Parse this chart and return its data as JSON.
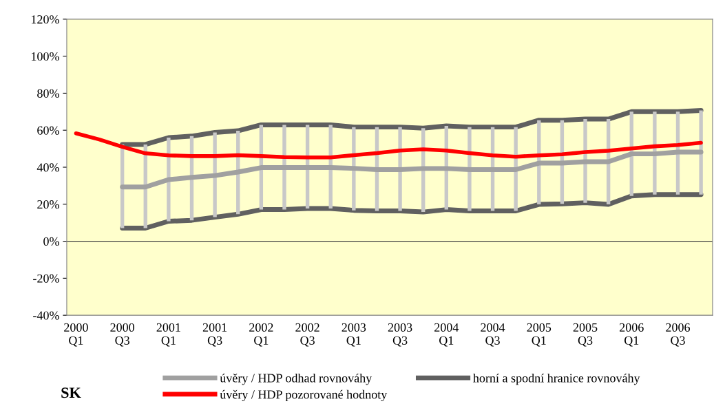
{
  "chart_data": {
    "type": "line",
    "categories": [
      "2000\nQ1",
      null,
      "2000\nQ3",
      null,
      "2001\nQ1",
      null,
      "2001\nQ3",
      null,
      "2002\nQ1",
      null,
      "2002\nQ3",
      null,
      "2003\nQ1",
      null,
      "2003\nQ3",
      null,
      "2004\nQ1",
      null,
      "2004\nQ3",
      null,
      "2005\nQ1",
      null,
      "2005\nQ3",
      null,
      "2006\nQ1",
      null,
      "2006\nQ3",
      null
    ],
    "series": [
      {
        "name": "úvěry / HDP odhad rovnováhy",
        "color": "#a0a0a0",
        "values": [
          null,
          null,
          29.3,
          29.3,
          33.3,
          34.5,
          35.5,
          37.4,
          39.8,
          39.8,
          39.8,
          39.8,
          39.4,
          38.7,
          38.7,
          39.3,
          39.3,
          38.7,
          38.7,
          38.7,
          42.2,
          42.2,
          43,
          43,
          47.2,
          47.2,
          48.2,
          48.2
        ]
      },
      {
        "name": "úvěry / HDP pozorované hodnoty",
        "color": "#ff0000",
        "values": [
          58.3,
          55,
          51,
          47.5,
          46.4,
          46,
          46,
          46.5,
          46,
          45.5,
          45.3,
          45.3,
          46.5,
          47.6,
          49,
          49.7,
          49,
          47.6,
          46.4,
          45.7,
          46.4,
          47,
          48.2,
          48.9,
          50.1,
          51.3,
          52,
          53.2
        ]
      },
      {
        "name": "horní a spodní hranice rovnováhy",
        "color": "#606060",
        "values": [
          null,
          null,
          52.3,
          52.3,
          56,
          56.8,
          58.8,
          59.7,
          62.9,
          62.9,
          62.9,
          62.9,
          61.7,
          61.7,
          61.7,
          61.1,
          62.3,
          61.7,
          61.7,
          61.7,
          65.4,
          65.4,
          66,
          66,
          70,
          70,
          70,
          70.7
        ]
      },
      {
        "type": "bar",
        "color": "#c8c8c8",
        "base": [
          null,
          null,
          7.1,
          7.1,
          10.8,
          11.3,
          13,
          14.6,
          17.1,
          17.1,
          17.7,
          17.7,
          16.7,
          16.4,
          16.4,
          15.8,
          17.1,
          16.4,
          16.4,
          16.4,
          19.9,
          20.2,
          20.8,
          19.9,
          24.5,
          25.2,
          25.2,
          25.2
        ],
        "values": [
          null,
          null,
          45.2,
          45.2,
          45.2,
          45.5,
          45.8,
          45.1,
          45.8,
          45.8,
          45.2,
          45.2,
          45,
          45.3,
          45.3,
          45.3,
          45.2,
          45.3,
          45.3,
          45.3,
          45.5,
          45.2,
          45.2,
          46.1,
          45.5,
          44.8,
          44.8,
          45.5
        ]
      },
      {
        "color": "#606060",
        "values": [
          null,
          null,
          7.1,
          7.1,
          10.8,
          11.3,
          13,
          14.6,
          17.1,
          17.1,
          17.7,
          17.7,
          16.7,
          16.4,
          16.4,
          15.8,
          17.1,
          16.4,
          16.4,
          16.4,
          19.9,
          20.2,
          20.8,
          19.9,
          24.5,
          25.2,
          25.2,
          25.2
        ]
      }
    ],
    "ylim": [
      -40,
      120
    ],
    "yticks": [
      {
        "value": -40,
        "label": "-40%"
      },
      {
        "value": -20,
        "label": "-20%"
      },
      {
        "value": 0,
        "label": "0%"
      },
      {
        "value": 20,
        "label": "20%"
      },
      {
        "value": 40,
        "label": "40%"
      },
      {
        "value": 60,
        "label": "60%"
      },
      {
        "value": 80,
        "label": "80%"
      },
      {
        "value": 100,
        "label": "100%"
      },
      {
        "value": 120,
        "label": "120%"
      }
    ],
    "annotations": [
      "SK"
    ],
    "legend": "bottom",
    "ref_lines": [
      {
        "axis": "y",
        "value": 0,
        "color": "#404040"
      }
    ],
    "grid": false
  }
}
